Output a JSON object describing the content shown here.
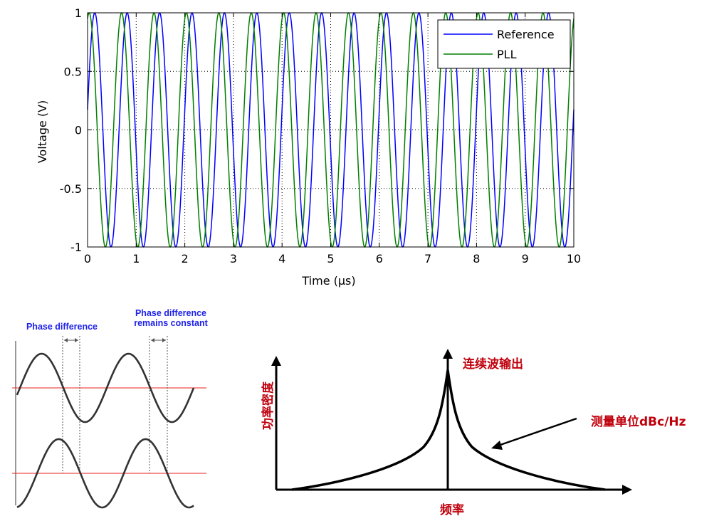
{
  "chart_data": [
    {
      "type": "line",
      "xlabel": "Time (µs)",
      "ylabel": "Voltage (V)",
      "xlim": [
        0,
        10
      ],
      "ylim": [
        -1,
        1
      ],
      "xticks": [
        "0",
        "1",
        "2",
        "3",
        "4",
        "5",
        "6",
        "7",
        "8",
        "9",
        "10"
      ],
      "yticks": [
        "1",
        "0.5",
        "0",
        "-0.5",
        "-1"
      ],
      "grid": true,
      "legend_position": "top-right",
      "series": [
        {
          "name": "Reference",
          "color": "#0000ff",
          "function": "sine",
          "frequency_MHz": 1.5,
          "phase_deg": 10,
          "amplitude": 1
        },
        {
          "name": "PLL",
          "color": "#007f00",
          "function": "sine",
          "frequency_MHz": 1.5,
          "phase_deg": 72,
          "amplitude": 1
        }
      ]
    },
    {
      "type": "line",
      "title": "",
      "annotations": [
        "Phase difference",
        "Phase difference",
        "remains constant"
      ],
      "series": [
        {
          "name": "upper waveform",
          "function": "sine"
        },
        {
          "name": "lower waveform",
          "function": "sine"
        }
      ]
    },
    {
      "type": "line",
      "xlabel": "频率",
      "ylabel": "功率密度",
      "annotations": [
        "连续波输出",
        "测量单位dBc/Hz"
      ],
      "series": [
        {
          "name": "spectrum",
          "shape": "peaked"
        }
      ]
    }
  ]
}
